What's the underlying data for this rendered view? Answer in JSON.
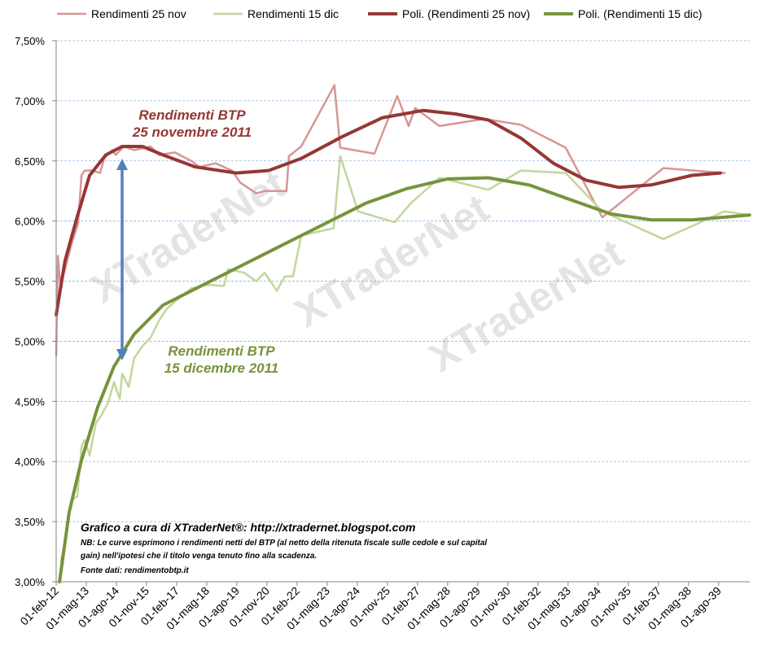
{
  "chart_data": {
    "type": "line",
    "watermark": "XTraderNet",
    "xlim": [
      2012.08,
      2040.87
    ],
    "xticks": [
      {
        "value": 2012.08,
        "label": "01-feb-12"
      },
      {
        "value": 2013.33,
        "label": "01-mag-13"
      },
      {
        "value": 2014.58,
        "label": "01-ago-14"
      },
      {
        "value": 2015.83,
        "label": "01-nov-15"
      },
      {
        "value": 2017.08,
        "label": "01-feb-17"
      },
      {
        "value": 2018.33,
        "label": "01-mag-18"
      },
      {
        "value": 2019.58,
        "label": "01-ago-19"
      },
      {
        "value": 2020.83,
        "label": "01-nov-20"
      },
      {
        "value": 2022.08,
        "label": "01-feb-22"
      },
      {
        "value": 2023.33,
        "label": "01-mag-23"
      },
      {
        "value": 2024.58,
        "label": "01-ago-24"
      },
      {
        "value": 2025.83,
        "label": "01-nov-25"
      },
      {
        "value": 2027.08,
        "label": "01-feb-27"
      },
      {
        "value": 2028.33,
        "label": "01-mag-28"
      },
      {
        "value": 2029.58,
        "label": "01-ago-29"
      },
      {
        "value": 2030.83,
        "label": "01-nov-30"
      },
      {
        "value": 2032.08,
        "label": "01-feb-32"
      },
      {
        "value": 2033.33,
        "label": "01-mag-33"
      },
      {
        "value": 2034.58,
        "label": "01-ago-34"
      },
      {
        "value": 2035.83,
        "label": "01-nov-35"
      },
      {
        "value": 2037.08,
        "label": "01-feb-37"
      },
      {
        "value": 2038.33,
        "label": "01-mag-38"
      },
      {
        "value": 2039.58,
        "label": "01-ago-39"
      }
    ],
    "ylim": [
      3,
      7.5
    ],
    "yticks": [
      {
        "value": 3,
        "label": "3,00%"
      },
      {
        "value": 3.5,
        "label": "3,50%"
      },
      {
        "value": 4,
        "label": "4,00%"
      },
      {
        "value": 4.5,
        "label": "4,50%"
      },
      {
        "value": 5,
        "label": "5,00%"
      },
      {
        "value": 5.5,
        "label": "5,50%"
      },
      {
        "value": 6,
        "label": "6,00%"
      },
      {
        "value": 6.5,
        "label": "6,50%"
      },
      {
        "value": 7,
        "label": "7,00%"
      },
      {
        "value": 7.5,
        "label": "7,50%"
      }
    ],
    "grid": true,
    "legend": "top",
    "series": [
      {
        "name": "Rendimenti 25 nov",
        "color": "#d99594",
        "width": 2.5,
        "x": [
          2012.08,
          2012.15,
          2012.25,
          2012.45,
          2012.72,
          2012.99,
          2013.13,
          2013.26,
          2013.57,
          2013.9,
          2014.07,
          2014.41,
          2014.55,
          2014.89,
          2015.32,
          2016.0,
          2016.34,
          2017.01,
          2017.69,
          2018.03,
          2018.7,
          2019.38,
          2019.72,
          2020.39,
          2020.73,
          2021.64,
          2021.74,
          2022.25,
          2023.63,
          2023.87,
          2025.29,
          2026.24,
          2026.71,
          2026.98,
          2027.99,
          2029.85,
          2031.37,
          2033.23,
          2034.75,
          2037.28,
          2039.82
        ],
        "values": [
          4.88,
          5.71,
          5.47,
          5.6,
          5.81,
          5.98,
          6.38,
          6.42,
          6.42,
          6.4,
          6.52,
          6.59,
          6.55,
          6.62,
          6.59,
          6.62,
          6.55,
          6.57,
          6.5,
          6.45,
          6.48,
          6.42,
          6.32,
          6.23,
          6.25,
          6.25,
          6.54,
          6.62,
          7.13,
          6.61,
          6.56,
          7.04,
          6.79,
          6.94,
          6.79,
          6.85,
          6.8,
          6.61,
          6.03,
          6.44,
          6.4
        ]
      },
      {
        "name": "Rendimenti 15 dic",
        "color": "#c3d69b",
        "width": 2.5,
        "x": [
          2012.28,
          2012.45,
          2012.72,
          2012.96,
          2013.13,
          2013.26,
          2013.47,
          2013.73,
          2013.97,
          2014.24,
          2014.48,
          2014.72,
          2014.82,
          2015.09,
          2015.32,
          2015.66,
          2016.0,
          2016.34,
          2016.67,
          2017.01,
          2017.69,
          2018.36,
          2019.04,
          2019.21,
          2019.88,
          2020.39,
          2020.73,
          2021.24,
          2021.57,
          2021.91,
          2022.25,
          2023.6,
          2023.87,
          2024.61,
          2026.13,
          2026.81,
          2027.99,
          2030.02,
          2031.37,
          2033.23,
          2034.75,
          2037.28,
          2039.82,
          2040.86
        ],
        "values": [
          3.17,
          3.34,
          3.68,
          3.71,
          4.12,
          4.18,
          4.05,
          4.32,
          4.39,
          4.49,
          4.66,
          4.52,
          4.73,
          4.62,
          4.86,
          4.96,
          5.03,
          5.17,
          5.27,
          5.33,
          5.44,
          5.47,
          5.46,
          5.6,
          5.57,
          5.5,
          5.57,
          5.42,
          5.54,
          5.54,
          5.88,
          5.94,
          6.54,
          6.08,
          5.99,
          6.15,
          6.36,
          6.26,
          6.42,
          6.4,
          6.08,
          5.85,
          6.08,
          6.05
        ]
      },
      {
        "name": "Poli. (Rendimenti 25 nov)",
        "color": "#953735",
        "width": 4,
        "x": [
          2012.08,
          2012.45,
          2012.96,
          2013.47,
          2014.14,
          2014.82,
          2015.66,
          2016.51,
          2017.86,
          2019.55,
          2020.9,
          2022.25,
          2023.94,
          2025.63,
          2027.32,
          2028.67,
          2030.02,
          2031.37,
          2032.72,
          2034.07,
          2035.43,
          2036.78,
          2038.47,
          2039.65
        ],
        "values": [
          5.22,
          5.67,
          6.04,
          6.38,
          6.55,
          6.62,
          6.62,
          6.55,
          6.45,
          6.4,
          6.42,
          6.52,
          6.7,
          6.86,
          6.92,
          6.89,
          6.84,
          6.69,
          6.48,
          6.34,
          6.28,
          6.3,
          6.38,
          6.4
        ]
      },
      {
        "name": "Poli. (Rendimenti 15 dic)",
        "color": "#77933c",
        "width": 4,
        "x": [
          2012.22,
          2012.62,
          2013.13,
          2013.8,
          2014.48,
          2015.32,
          2016.51,
          2018.19,
          2019.88,
          2021.57,
          2023.26,
          2024.95,
          2026.64,
          2028.33,
          2030.02,
          2031.71,
          2033.4,
          2035.09,
          2036.78,
          2038.47,
          2040.86
        ],
        "values": [
          3.0,
          3.58,
          4.01,
          4.45,
          4.79,
          5.06,
          5.3,
          5.47,
          5.64,
          5.81,
          5.98,
          6.15,
          6.27,
          6.35,
          6.36,
          6.3,
          6.18,
          6.06,
          6.01,
          6.01,
          6.05
        ]
      }
    ],
    "annotations": [
      {
        "lines": [
          "Rendimenti BTP",
          "25 novembre 2011"
        ],
        "color": "#953735"
      },
      {
        "lines": [
          "Rendimenti BTP",
          "15 dicembre 2011"
        ],
        "color": "#77933c"
      }
    ],
    "note": {
      "credit": "Grafico a cura di XTraderNet®: http://xtradernet.blogspot.com",
      "nb": [
        "NB: Le curve esprimono  i rendimenti netti del BTP (al netto della ritenuta fiscale sulle cedole e sul capital",
        "gain) nell'ipotesi  che il titolo venga tenuto fino alla scadenza."
      ],
      "source": "Fonte dati: rendimentobtp.it"
    }
  }
}
